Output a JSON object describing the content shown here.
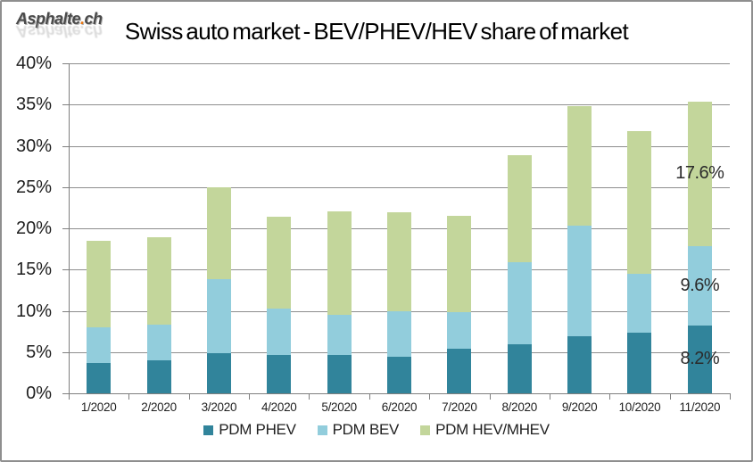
{
  "watermark": {
    "name": "Asphalte",
    "dot": ".",
    "tld": "ch"
  },
  "title": "Swiss auto market - BEV/PHEV/HEV share of market",
  "colors": {
    "phev": "#31849B",
    "bev": "#92CDDC",
    "hev": "#C3D69B",
    "gridline": "#8e8e8e",
    "axis": "#7f7f7f",
    "text": "#1f1f1f"
  },
  "chart_data": {
    "type": "bar",
    "stacked": true,
    "title": "Swiss auto market - BEV/PHEV/HEV share of market",
    "xlabel": "",
    "ylabel": "",
    "ylim": [
      0,
      40
    ],
    "ytick_step": 5,
    "ytick_suffix": "%",
    "grid": true,
    "legend_position": "bottom",
    "categories": [
      "1/2020",
      "2/2020",
      "3/2020",
      "4/2020",
      "5/2020",
      "6/2020",
      "7/2020",
      "8/2020",
      "9/2020",
      "10/2020",
      "11/2020"
    ],
    "series": [
      {
        "name": "PDM PHEV",
        "color": "#31849B",
        "values": [
          3.7,
          4.0,
          4.9,
          4.6,
          4.6,
          4.4,
          5.4,
          5.9,
          6.9,
          7.3,
          8.2
        ]
      },
      {
        "name": "PDM BEV",
        "color": "#92CDDC",
        "values": [
          4.3,
          4.3,
          8.9,
          5.7,
          4.9,
          5.5,
          4.4,
          10.0,
          13.4,
          7.2,
          9.6
        ]
      },
      {
        "name": "PDM HEV/MHEV",
        "color": "#C3D69B",
        "values": [
          10.5,
          10.6,
          11.2,
          11.1,
          12.6,
          12.1,
          11.7,
          13.0,
          14.5,
          17.3,
          17.6
        ]
      }
    ],
    "data_labels": [
      {
        "text": "8.2%",
        "category": 10,
        "series": 0
      },
      {
        "text": "9.6%",
        "category": 10,
        "series": 1
      },
      {
        "text": "17.6%",
        "category": 10,
        "series": 2
      }
    ]
  },
  "legend": {
    "items": [
      {
        "label": "PDM PHEV",
        "color": "#31849B"
      },
      {
        "label": "PDM BEV",
        "color": "#92CDDC"
      },
      {
        "label": "PDM HEV/MHEV",
        "color": "#C3D69B"
      }
    ]
  }
}
